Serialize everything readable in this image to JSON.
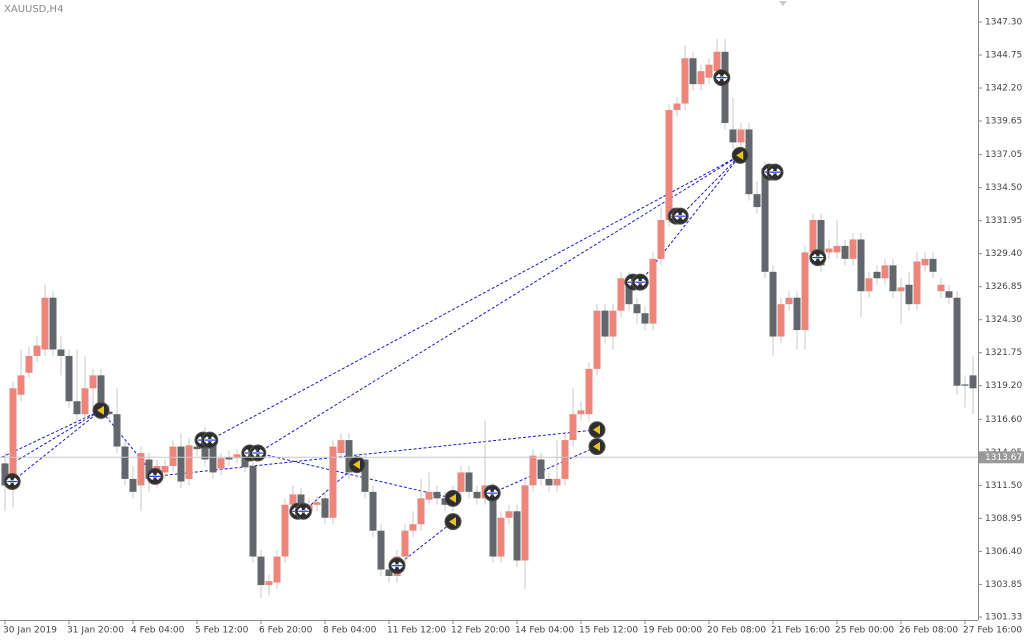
{
  "chart_data": {
    "type": "candlestick",
    "title": "XAUUSD,H4",
    "up_color": "#ee857a",
    "down_color": "#62676e",
    "categories": [
      "30 Jan 2019",
      null,
      null,
      null,
      null,
      null,
      null,
      null,
      "31 Jan 20:00",
      null,
      null,
      null,
      null,
      null,
      null,
      null,
      "4 Feb 04:00",
      null,
      null,
      null,
      null,
      null,
      null,
      null,
      "5 Feb 12:00",
      null,
      null,
      null,
      null,
      null,
      null,
      null,
      "6 Feb 20:00",
      null,
      null,
      null,
      null,
      null,
      null,
      null,
      "8 Feb 04:00",
      null,
      null,
      null,
      null,
      null,
      null,
      null,
      "11 Feb 12:00",
      null,
      null,
      null,
      null,
      null,
      null,
      null,
      "12 Feb 20:00",
      null,
      null,
      null,
      null,
      null,
      null,
      null,
      "14 Feb 04:00",
      null,
      null,
      null,
      null,
      null,
      null,
      null,
      "15 Feb 12:00",
      null,
      null,
      null,
      null,
      null,
      null,
      null,
      "19 Feb 00:00",
      null,
      null,
      null,
      null,
      null,
      null,
      null,
      "20 Feb 08:00",
      null,
      null,
      null,
      null,
      null,
      null,
      null,
      "21 Feb 16:00",
      null,
      null,
      null,
      null,
      null,
      null,
      null,
      "25 Feb 00:00",
      null,
      null,
      null,
      null,
      null,
      null,
      null,
      "26 Feb 08:00",
      null,
      null,
      null,
      null,
      null,
      null,
      null,
      "27 Feb 16:00",
      null
    ],
    "open": [
      1313.2,
      1311.5,
      1318.5,
      1320.2,
      1321.5,
      1322,
      1326,
      1322,
      1321.5,
      1318,
      1317,
      1319,
      1320,
      1317.2,
      1317,
      1314.5,
      1312,
      1311.5,
      1313.5,
      1311.8,
      1312.5,
      1313,
      1314.5,
      1312,
      1314.5,
      1314.5,
      1314.6,
      1312.8,
      1313.7,
      1313.6,
      1313.8,
      1313,
      1306,
      1303.8,
      1304,
      1306,
      1310,
      1310.8,
      1309.5,
      1310,
      1310.5,
      1309,
      1314,
      1315,
      1312.5,
      1313.5,
      1311,
      1308,
      1305,
      1304.5,
      1306,
      1308,
      1308.5,
      1310.4,
      1311,
      1310.5,
      1310,
      1311,
      1312.5,
      1311,
      1310.5,
      1311.2,
      1306,
      1309,
      1309.5,
      1305.7,
      1311.5,
      1313.5,
      1312,
      1311.5,
      1312,
      1315,
      1317,
      1317,
      1320.5,
      1325,
      1323,
      1325,
      1327.5,
      1325.5,
      1324.8,
      1324,
      1329,
      1332,
      1340.5,
      1341,
      1344.5,
      1342.5,
      1343,
      1343.5,
      1345,
      1339,
      1338,
      1339,
      1334,
      1336,
      1328,
      1323,
      1325.5,
      1326,
      1323.5,
      1329.5,
      1332,
      1329.5,
      1329.5,
      1330,
      1329,
      1330.5,
      1326.5,
      1328,
      1327.5,
      1328.5,
      1326.5,
      1327,
      1325.5,
      1328.5,
      1329,
      1326.5,
      1326.5,
      1326,
      1319.3,
      1320
    ],
    "high": [
      1314,
      1319.5,
      1322,
      1322.2,
      1323,
      1327,
      1326.5,
      1323,
      1322,
      1322,
      1321.5,
      1320.5,
      1320.5,
      1317.8,
      1319,
      1315,
      1313,
      1314.5,
      1314,
      1313.5,
      1313.5,
      1315,
      1315.5,
      1315.2,
      1315.5,
      1316,
      1315,
      1314,
      1314.2,
      1314.3,
      1314.2,
      1313.4,
      1306.5,
      1304.6,
      1306.5,
      1310.5,
      1311.5,
      1311.3,
      1310.5,
      1310.7,
      1311,
      1315,
      1315.5,
      1315.5,
      1314,
      1314,
      1311.5,
      1308.5,
      1305.5,
      1306.5,
      1308.5,
      1309.5,
      1312,
      1312.5,
      1311.5,
      1311,
      1311.5,
      1313,
      1313,
      1311.5,
      1316.5,
      1311.7,
      1309.5,
      1310,
      1310,
      1312,
      1314.3,
      1314,
      1312.5,
      1315,
      1315.5,
      1319,
      1318,
      1321,
      1325.5,
      1325.5,
      1325.5,
      1328,
      1328,
      1326,
      1325.3,
      1329.5,
      1333,
      1341,
      1341.5,
      1345.5,
      1345,
      1344,
      1344.5,
      1346,
      1346,
      1341.5,
      1339.5,
      1339.5,
      1335,
      1336.5,
      1328.5,
      1326,
      1326.5,
      1326.5,
      1330,
      1332.5,
      1332.5,
      1330.5,
      1332,
      1330.5,
      1331,
      1331,
      1328,
      1328.5,
      1329,
      1329,
      1327.5,
      1328,
      1329.5,
      1329.5,
      1329.5,
      1327.5,
      1327,
      1326.5,
      1320,
      1321.5
    ],
    "low": [
      1309.5,
      1309.8,
      1318,
      1319.8,
      1321,
      1321.5,
      1321.5,
      1320,
      1317.5,
      1316.5,
      1316.5,
      1317.5,
      1316.5,
      1316.5,
      1314,
      1311.5,
      1310.5,
      1309.5,
      1311,
      1311.3,
      1312,
      1312.5,
      1311.3,
      1311.5,
      1313.8,
      1313,
      1312,
      1312.3,
      1313,
      1313.2,
      1312.5,
      1305.5,
      1302.8,
      1303,
      1303.5,
      1305.5,
      1309.5,
      1309,
      1309,
      1309.5,
      1308.5,
      1308.5,
      1313.5,
      1312,
      1312,
      1310.5,
      1307.5,
      1304.5,
      1304,
      1304,
      1305.5,
      1307.5,
      1308,
      1310,
      1310,
      1309.5,
      1309.5,
      1310.5,
      1310.5,
      1310,
      1310,
      1305.5,
      1305.5,
      1308.5,
      1305.2,
      1303.5,
      1311,
      1311.5,
      1311,
      1311,
      1311.5,
      1314.5,
      1316.5,
      1316.5,
      1320,
      1322.5,
      1322,
      1324.5,
      1325,
      1324,
      1323.5,
      1323.5,
      1328.5,
      1331.5,
      1340,
      1340.5,
      1342,
      1342,
      1342.5,
      1342.5,
      1339,
      1337.5,
      1337,
      1333.5,
      1332.5,
      1327.5,
      1321.5,
      1322.5,
      1325,
      1322,
      1322,
      1329,
      1328,
      1329,
      1329,
      1328.5,
      1328.5,
      1324.5,
      1326,
      1327,
      1327,
      1326,
      1324,
      1325,
      1325,
      1328,
      1327.5,
      1326,
      1325.5,
      1318.5,
      1317.5,
      1317
    ],
    "close": [
      1311.5,
      1319,
      1320,
      1321.5,
      1322.3,
      1326,
      1322,
      1321.5,
      1318,
      1317,
      1319,
      1320,
      1317,
      1317,
      1314.5,
      1312,
      1311,
      1314,
      1312,
      1313,
      1313,
      1314.5,
      1311.8,
      1314.6,
      1314.3,
      1313.5,
      1312.5,
      1313.6,
      1313.5,
      1313.9,
      1312.9,
      1306,
      1303.8,
      1304.1,
      1306,
      1310,
      1310.8,
      1309.5,
      1310,
      1310.2,
      1309,
      1314.5,
      1315,
      1312.5,
      1313.5,
      1311,
      1308,
      1305,
      1304.5,
      1306,
      1308,
      1308.5,
      1310.5,
      1311,
      1310.5,
      1310,
      1311,
      1312.5,
      1311,
      1310.5,
      1311.5,
      1306,
      1309,
      1309.5,
      1305.7,
      1311.5,
      1313.8,
      1312,
      1311.5,
      1312,
      1315,
      1317,
      1317.3,
      1320.5,
      1325,
      1323,
      1325,
      1327.5,
      1325.5,
      1324.8,
      1324,
      1329,
      1332,
      1340.5,
      1341,
      1344.5,
      1342.5,
      1343.5,
      1344,
      1345,
      1339.5,
      1338,
      1339,
      1334,
      1333,
      1328,
      1323,
      1325.5,
      1326,
      1323.5,
      1329.5,
      1332,
      1328.5,
      1329.8,
      1330,
      1329,
      1330.5,
      1326.5,
      1327.5,
      1327.5,
      1328.5,
      1326.5,
      1326.8,
      1325.5,
      1328.8,
      1329,
      1328,
      1327,
      1326,
      1319.2,
      1319.2,
      1319
    ],
    "ylim": [
      1301.1,
      1349.0
    ],
    "yticks": [
      {
        "value": 1347.3,
        "label": "1347.30"
      },
      {
        "value": 1344.75,
        "label": "1344.75"
      },
      {
        "value": 1342.2,
        "label": "1342.20"
      },
      {
        "value": 1339.65,
        "label": "1339.65"
      },
      {
        "value": 1337.05,
        "label": "1337.05"
      },
      {
        "value": 1334.5,
        "label": "1334.50"
      },
      {
        "value": 1331.95,
        "label": "1331.95"
      },
      {
        "value": 1329.4,
        "label": "1329.40"
      },
      {
        "value": 1326.85,
        "label": "1326.85"
      },
      {
        "value": 1324.3,
        "label": "1324.30"
      },
      {
        "value": 1321.75,
        "label": "1321.75"
      },
      {
        "value": 1319.2,
        "label": "1319.20"
      },
      {
        "value": 1316.6,
        "label": "1316.60"
      },
      {
        "value": 1314.05,
        "label": "1314.05"
      },
      {
        "value": 1311.5,
        "label": "1311.50"
      },
      {
        "value": 1308.95,
        "label": "1308.95"
      },
      {
        "value": 1306.4,
        "label": "1306.40"
      },
      {
        "value": 1303.85,
        "label": "1303.85"
      },
      {
        "value": 1301.33,
        "label": "1301.33"
      }
    ],
    "current_price": 1313.67,
    "markers": [
      {
        "color": "#1e3cff",
        "x": [
          0.9,
          18.75,
          24.75,
          25.6,
          30.6,
          31.6,
          36.6,
          37.3,
          49,
          60.9,
          78.5,
          79.4,
          83.9,
          84.4,
          89.6,
          95.6,
          96.25,
          101.6
        ],
        "values": [
          1311.8,
          1312.2,
          1315.0,
          1315.0,
          1314.0,
          1314.0,
          1309.5,
          1309.5,
          1305.3,
          1310.9,
          1327.2,
          1327.2,
          1332.3,
          1332.3,
          1343.0,
          1335.7,
          1335.7,
          1329.1
        ]
      },
      {
        "color": "#e8c420",
        "x": [
          12,
          44,
          56,
          56,
          74,
          74,
          91.9
        ],
        "values": [
          1317.3,
          1313.1,
          1310.5,
          1308.7,
          1315.8,
          1314.5,
          1337.0
        ]
      }
    ],
    "link_color": "#1a1acc",
    "links": [
      {
        "x": [
          -1,
          12
        ],
        "values": [
          1313.5,
          1317.3
        ]
      },
      {
        "x": [
          -1,
          12
        ],
        "values": [
          1312.5,
          1317.3
        ]
      },
      {
        "x": [
          0.9,
          12
        ],
        "values": [
          1311.8,
          1317.3
        ]
      },
      {
        "x": [
          18.75,
          12
        ],
        "values": [
          1312.2,
          1317.3
        ]
      },
      {
        "x": [
          25.6,
          91.9
        ],
        "values": [
          1315.0,
          1337.0
        ]
      },
      {
        "x": [
          31.6,
          91.9
        ],
        "values": [
          1314.0,
          1337.0
        ]
      },
      {
        "x": [
          18.75,
          74
        ],
        "values": [
          1312.2,
          1315.8
        ]
      },
      {
        "x": [
          31.6,
          56
        ],
        "values": [
          1314.0,
          1310.5
        ]
      },
      {
        "x": [
          37.3,
          44
        ],
        "values": [
          1309.5,
          1313.1
        ]
      },
      {
        "x": [
          49,
          56
        ],
        "values": [
          1305.3,
          1308.7
        ]
      },
      {
        "x": [
          60.9,
          74
        ],
        "values": [
          1310.9,
          1314.5
        ]
      },
      {
        "x": [
          79.4,
          91.9
        ],
        "values": [
          1327.2,
          1337.0
        ]
      },
      {
        "x": [
          84.4,
          91.9
        ],
        "values": [
          1332.3,
          1337.0
        ]
      }
    ]
  }
}
